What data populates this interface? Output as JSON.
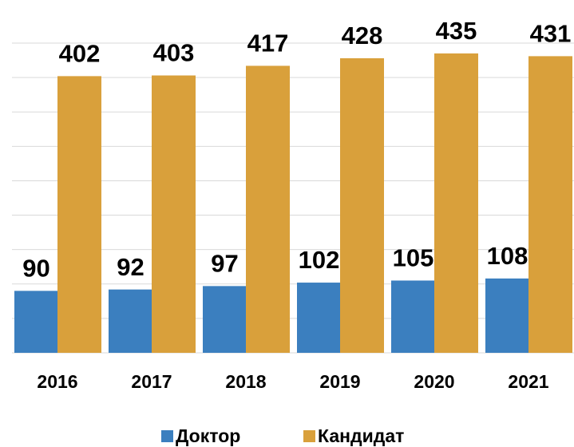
{
  "chart_data": {
    "type": "bar",
    "categories": [
      "2016",
      "2017",
      "2018",
      "2019",
      "2020",
      "2021"
    ],
    "series": [
      {
        "name": "Доктор",
        "color": "#3b7fbf",
        "values": [
          90,
          92,
          97,
          102,
          105,
          108
        ]
      },
      {
        "name": "Кандидат",
        "color": "#d9a03b",
        "values": [
          402,
          403,
          417,
          428,
          435,
          431
        ]
      }
    ],
    "ylim": [
      0,
      450
    ],
    "yticks": [
      0,
      50,
      100,
      150,
      200,
      250,
      300,
      350,
      400,
      450
    ],
    "grid": true,
    "legend": "bottom"
  }
}
